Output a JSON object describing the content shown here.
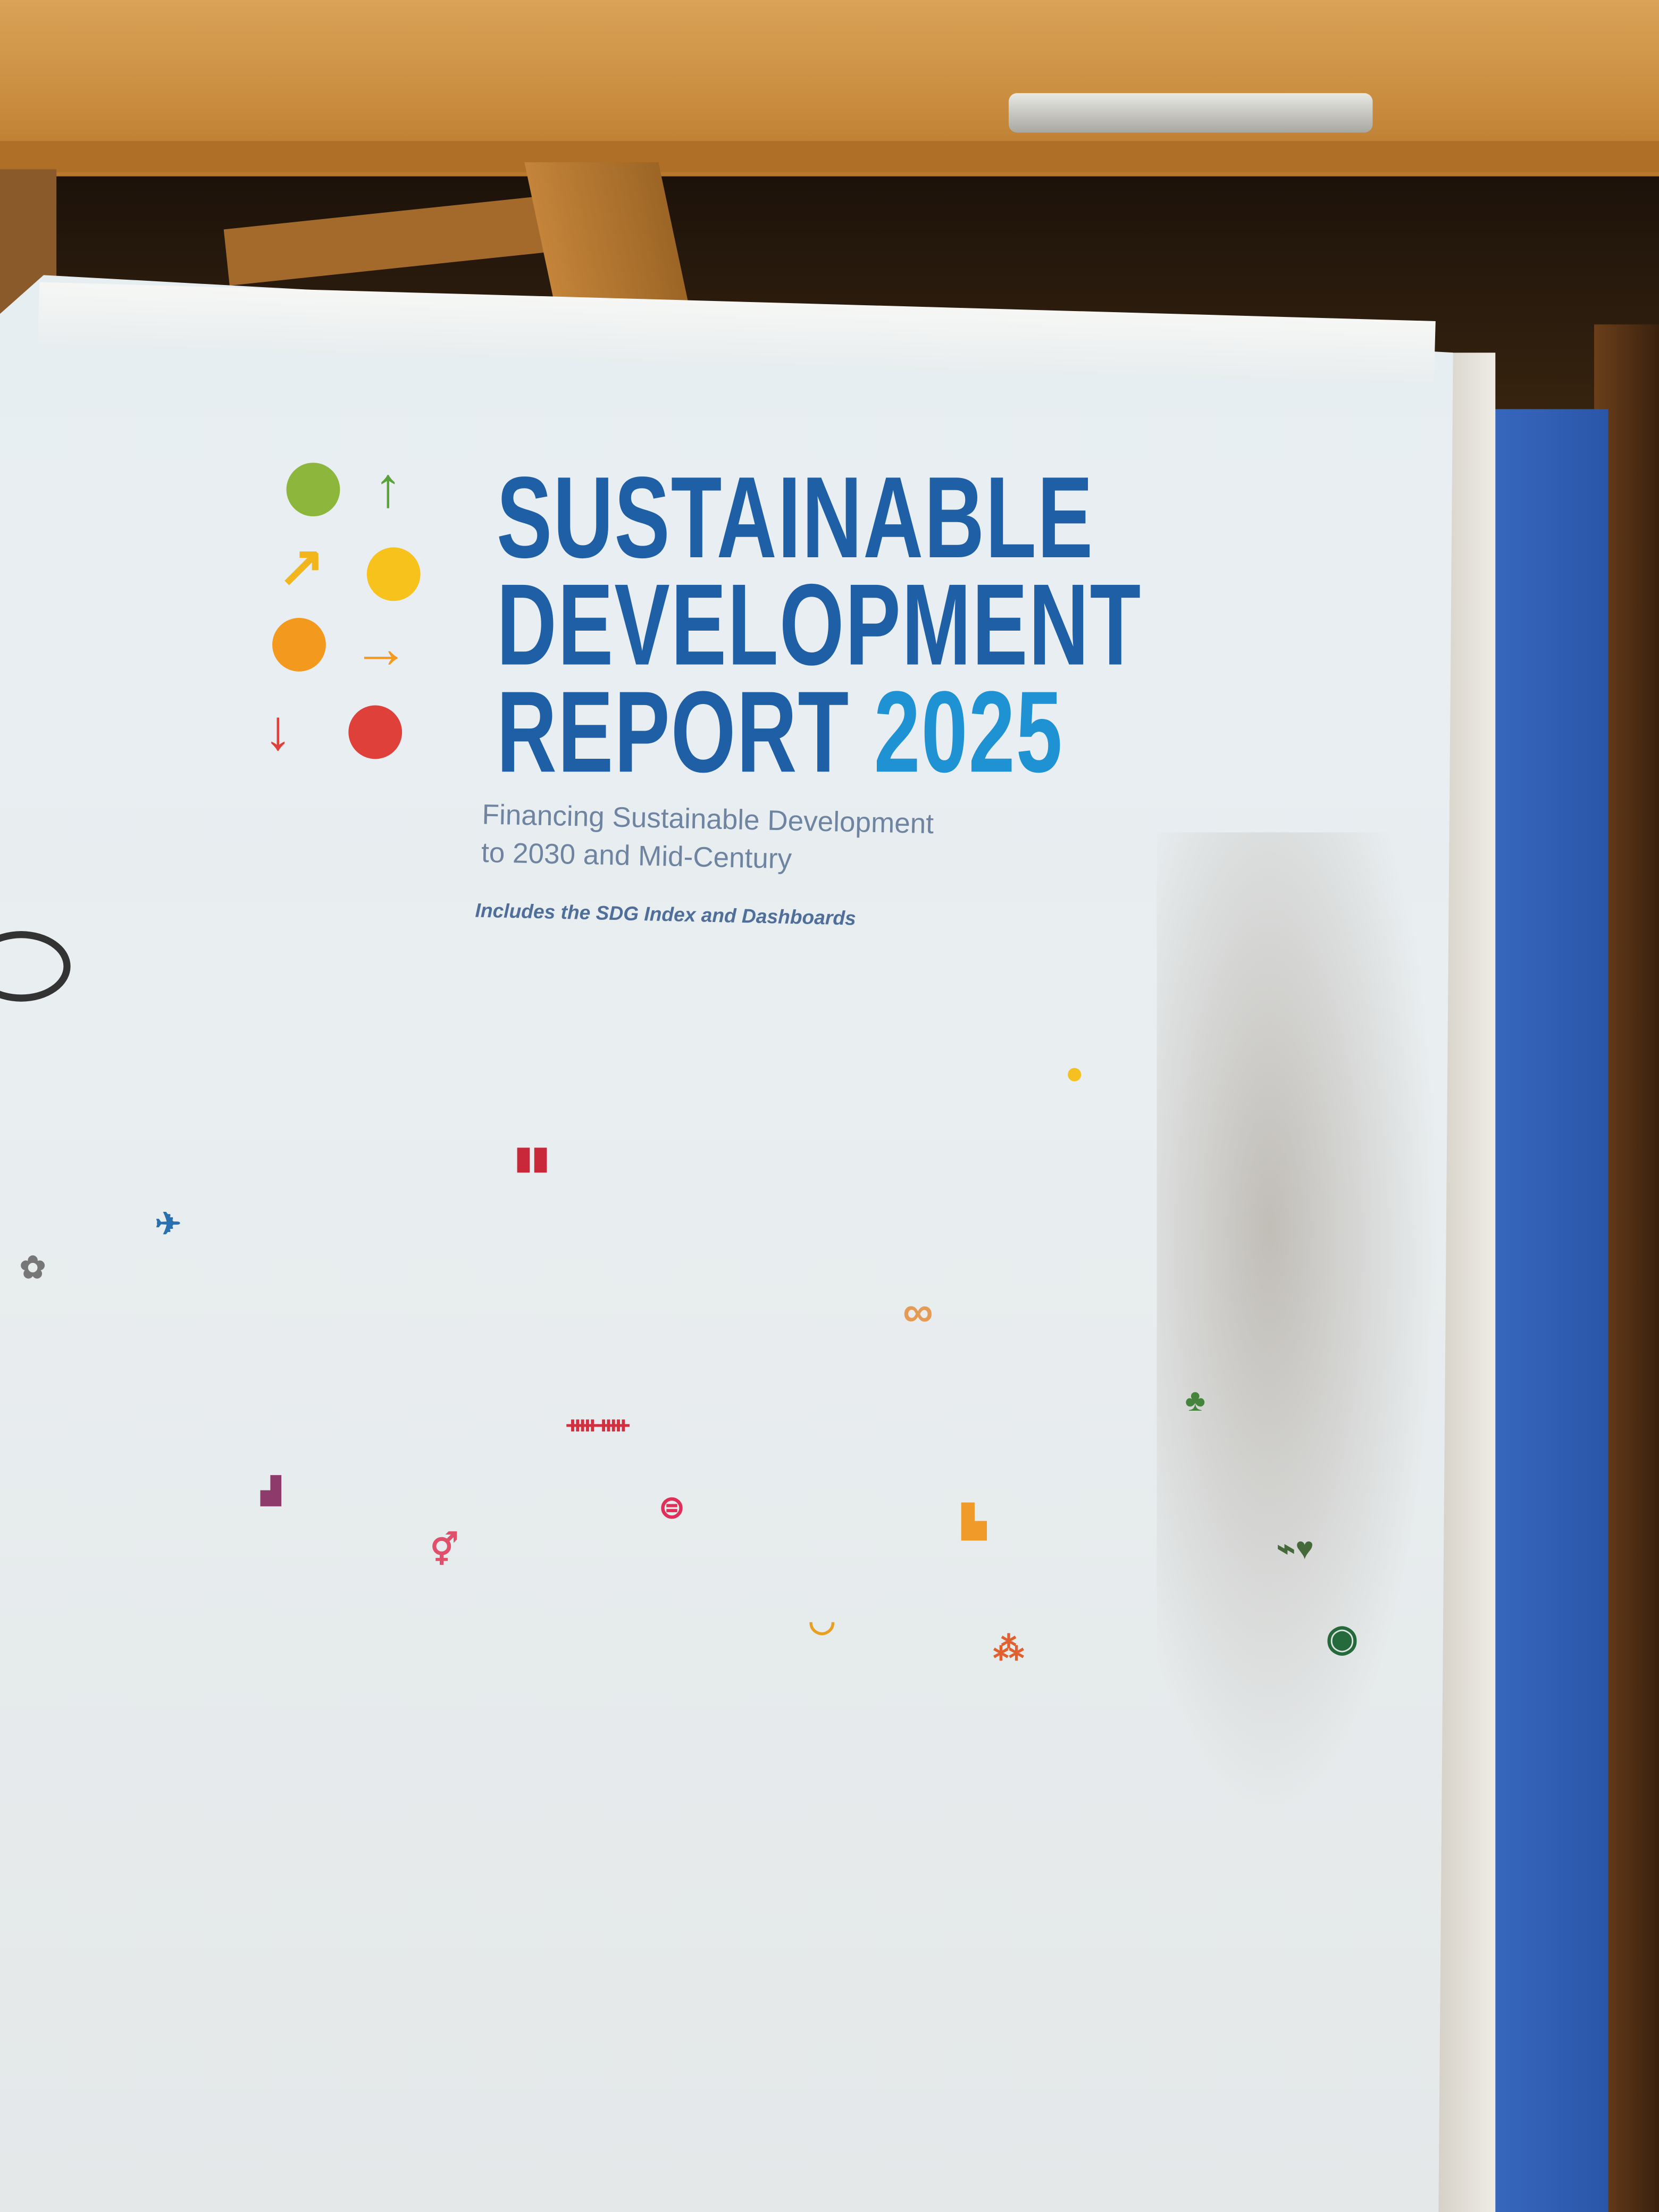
{
  "cover": {
    "title_line1": "SUSTAINABLE",
    "title_line2": "DEVELOPMENT",
    "title_line3_word": "REPORT",
    "title_year": "2025",
    "subtitle_line1": "Financing Sustainable Development",
    "subtitle_line2": "to 2030 and Mid-Century",
    "tagline": "Includes the SDG Index and Dashboards"
  },
  "colors": {
    "title_blue": "#1f5fa5",
    "year_blue": "#1e92d2",
    "logo_green": "#8cb63c",
    "logo_yellow": "#f2b51b",
    "logo_orange": "#f39a1e",
    "logo_red": "#e0403a",
    "binder_blue": "#2f5fb5"
  },
  "logo": {
    "items": [
      "green-dot",
      "up-arrow",
      "up-right-arrow",
      "yellow-dot",
      "orange-dot",
      "right-arrow",
      "down-arrow",
      "red-dot"
    ]
  },
  "sdg_icons": [
    "flower-icon",
    "airplane-icon",
    "growth-chart-icon",
    "gender-icon",
    "book-icon",
    "family-icon",
    "equality-icon",
    "bowl-icon",
    "infinity-icon",
    "bar-chart-icon",
    "biodiversity-icon",
    "sun-icon",
    "tree-icon",
    "heartbeat-icon",
    "eye-globe-icon"
  ]
}
